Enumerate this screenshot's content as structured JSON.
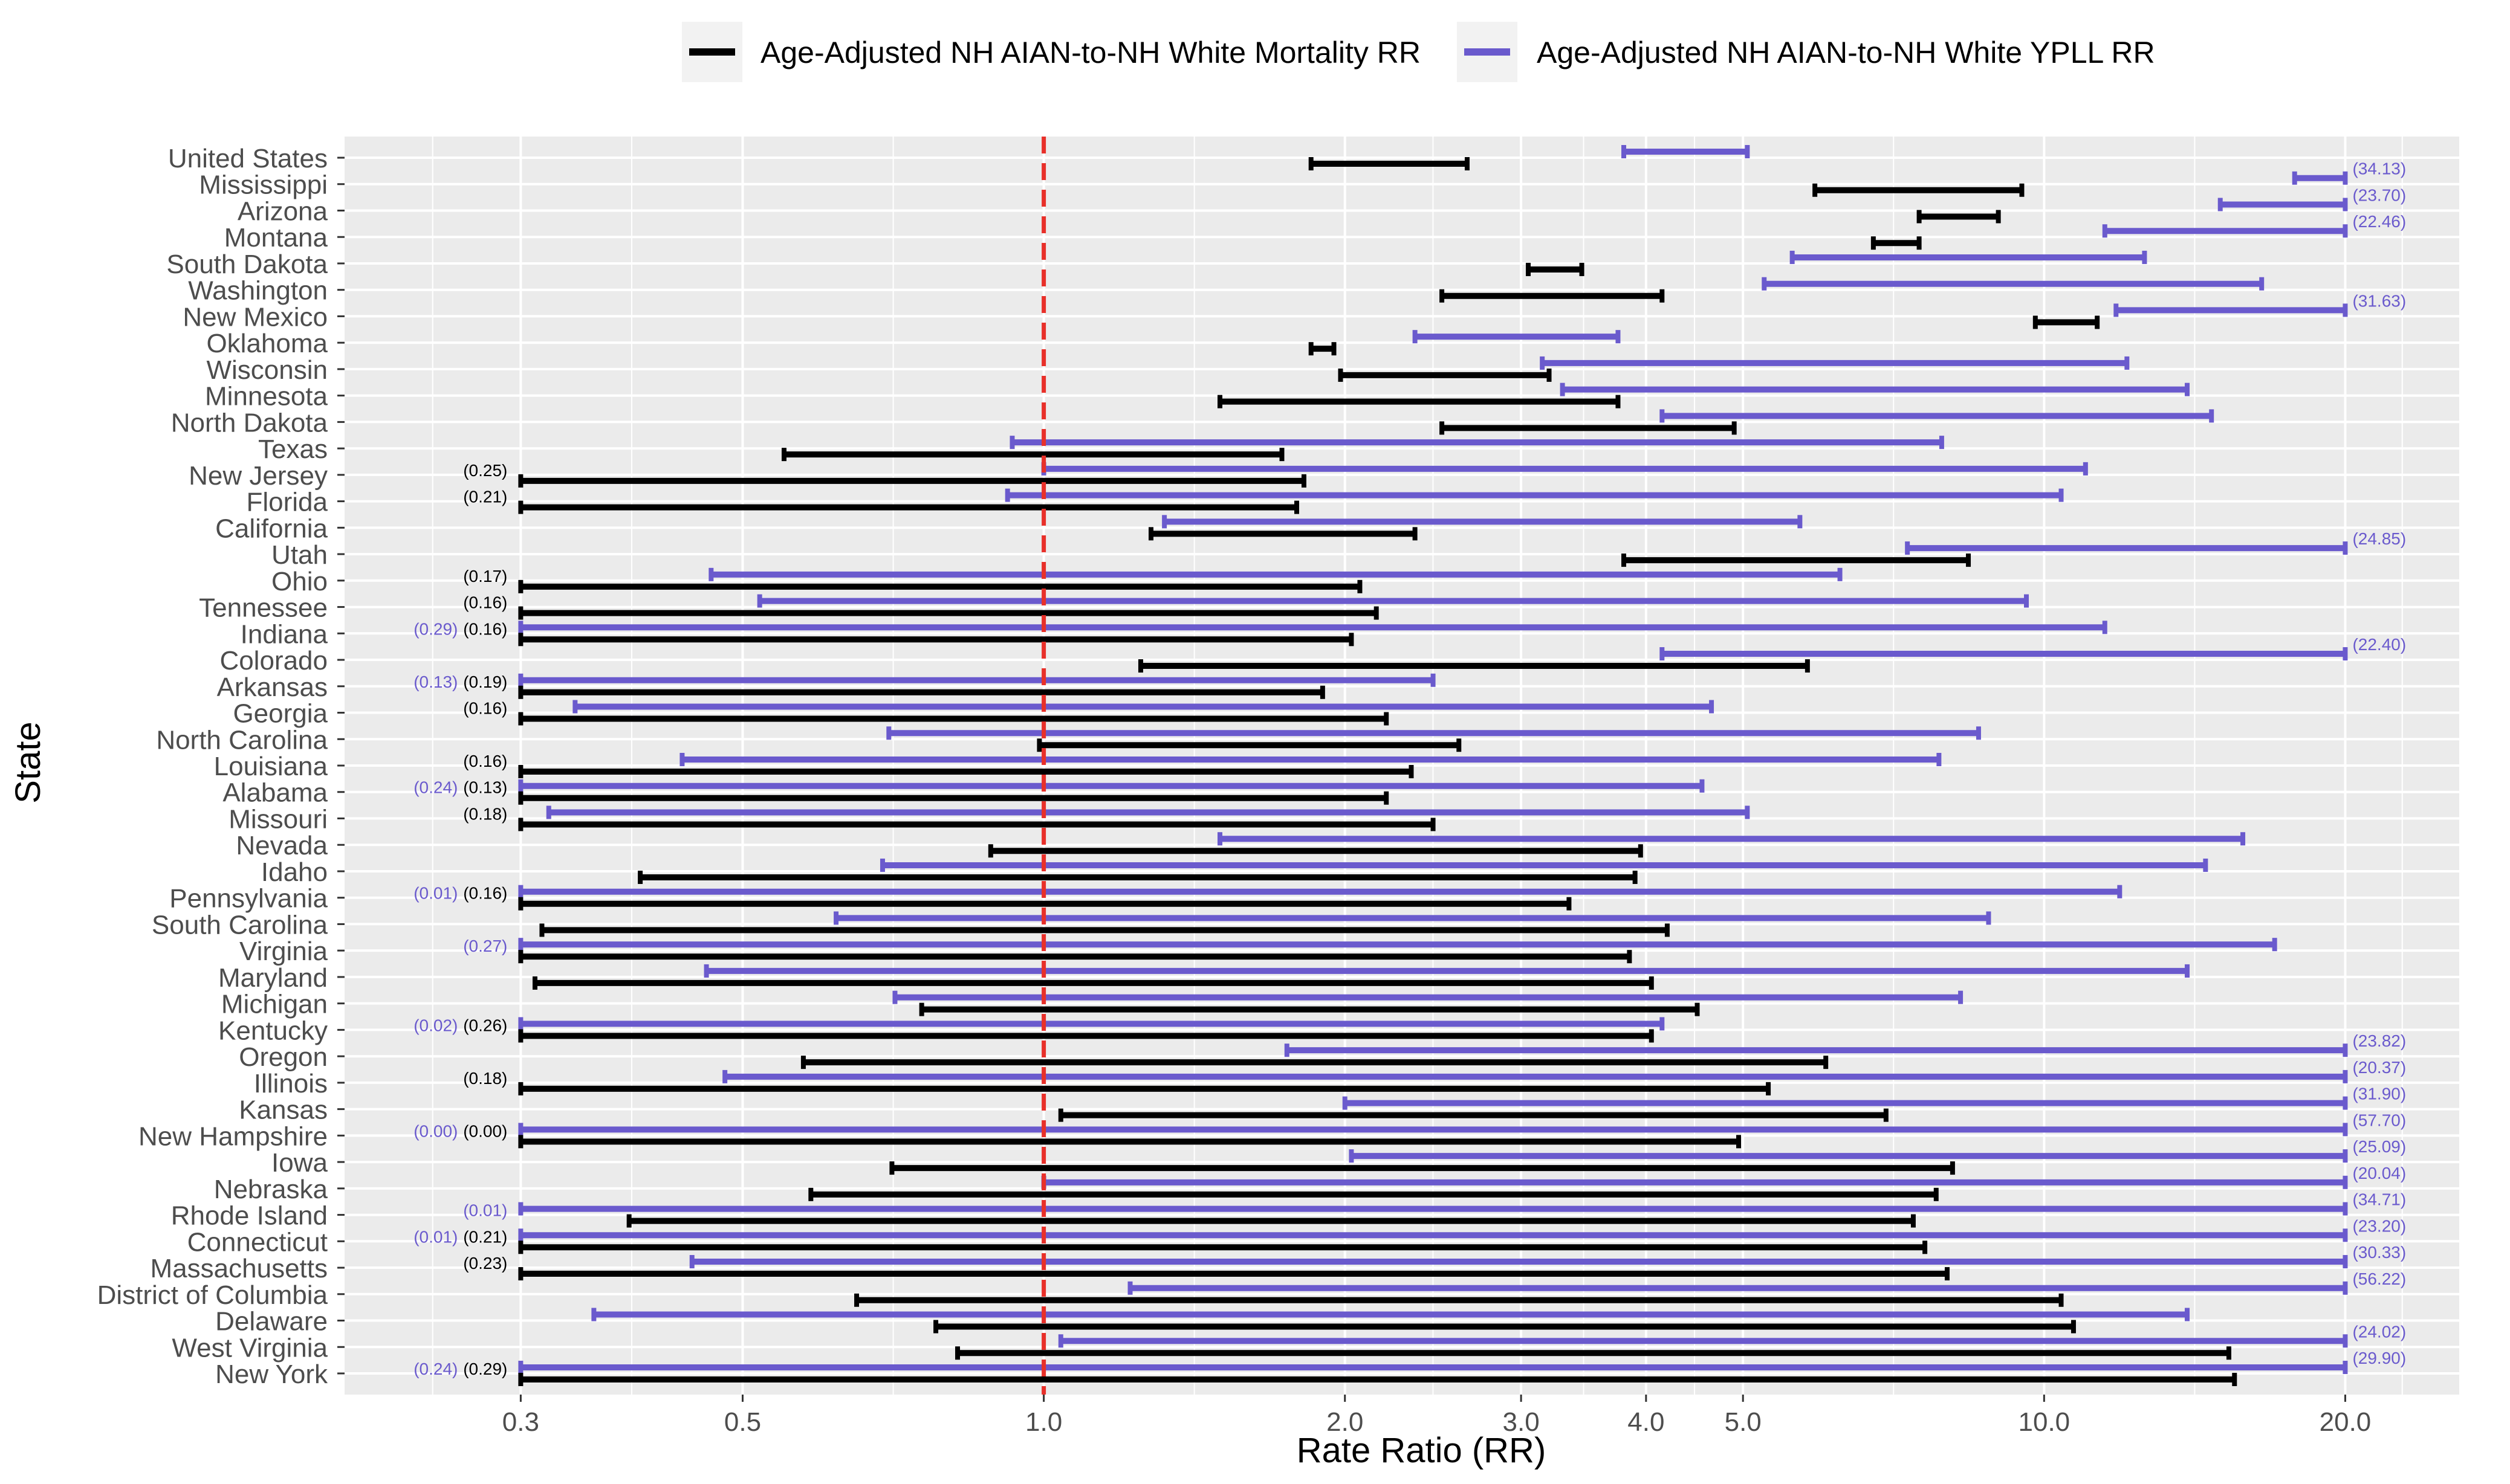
{
  "chart_data": {
    "type": "range-bar",
    "legend": {
      "placement": "top-center",
      "items": [
        {
          "name": "Age-Adjusted NH AIAN-to-NH White Mortality RR",
          "color": "#000000"
        },
        {
          "name": "Age-Adjusted NH AIAN-to-NH White YPLL RR",
          "color": "#6a5acd"
        }
      ]
    },
    "xlabel": "Rate Ratio (RR)",
    "ylabel": "State",
    "xscale": "log",
    "xlim": [
      0.2,
      26
    ],
    "xticks": [
      0.3,
      0.5,
      1.0,
      2.0,
      3.0,
      4.0,
      5.0,
      10.0,
      20.0
    ],
    "xtick_labels": [
      "0.3",
      "0.5",
      "1.0",
      "2.0",
      "3.0",
      "4.0",
      "5.0",
      "10.0",
      "20.0"
    ],
    "reference_line": 1.0,
    "clip_low": 0.3,
    "clip_high": 20.0,
    "colors": {
      "mortality": "#000000",
      "ypll": "#6a5acd",
      "reference": "#e8302a",
      "panel": "#ebebeb"
    },
    "rows": [
      {
        "state": "United States",
        "mort": [
          1.85,
          2.65
        ],
        "ypll": [
          3.8,
          5.05
        ]
      },
      {
        "state": "Mississippi",
        "mort": [
          5.9,
          9.5
        ],
        "ypll": [
          17.8,
          20.0
        ],
        "ypll_hi_label": "(34.13)"
      },
      {
        "state": "Arizona",
        "mort": [
          7.5,
          9.0
        ],
        "ypll": [
          15.0,
          20.0
        ],
        "ypll_hi_label": "(23.70)"
      },
      {
        "state": "Montana",
        "mort": [
          6.75,
          7.5
        ],
        "ypll": [
          11.5,
          20.0
        ],
        "ypll_hi_label": "(22.46)"
      },
      {
        "state": "South Dakota",
        "mort": [
          3.05,
          3.45
        ],
        "ypll": [
          5.6,
          12.6
        ]
      },
      {
        "state": "Washington",
        "mort": [
          2.5,
          4.15
        ],
        "ypll": [
          5.25,
          16.5
        ]
      },
      {
        "state": "New Mexico",
        "mort": [
          9.8,
          11.3
        ],
        "ypll": [
          11.8,
          20.0
        ],
        "ypll_hi_label": "(31.63)"
      },
      {
        "state": "Oklahoma",
        "mort": [
          1.85,
          1.95
        ],
        "ypll": [
          2.35,
          3.75
        ]
      },
      {
        "state": "Wisconsin",
        "mort": [
          1.98,
          3.2
        ],
        "ypll": [
          3.15,
          12.1
        ]
      },
      {
        "state": "Minnesota",
        "mort": [
          1.5,
          3.75
        ],
        "ypll": [
          3.3,
          13.9
        ]
      },
      {
        "state": "North Dakota",
        "mort": [
          2.5,
          4.9
        ],
        "ypll": [
          4.15,
          14.7
        ]
      },
      {
        "state": "Texas",
        "mort": [
          0.55,
          1.73
        ],
        "ypll": [
          0.93,
          7.9
        ]
      },
      {
        "state": "New Jersey",
        "mort": [
          0.3,
          1.82
        ],
        "ypll": [
          1.0,
          11.0
        ],
        "mort_lo_label": "(0.25)"
      },
      {
        "state": "Florida",
        "mort": [
          0.3,
          1.79
        ],
        "ypll": [
          0.92,
          10.4
        ],
        "mort_lo_label": "(0.21)"
      },
      {
        "state": "California",
        "mort": [
          1.28,
          2.35
        ],
        "ypll": [
          1.32,
          5.7
        ]
      },
      {
        "state": "Utah",
        "mort": [
          3.8,
          8.4
        ],
        "ypll": [
          7.3,
          20.0
        ],
        "ypll_hi_label": "(24.85)"
      },
      {
        "state": "Ohio",
        "mort": [
          0.3,
          2.07
        ],
        "ypll": [
          0.465,
          6.25
        ],
        "mort_lo_label": "(0.17)"
      },
      {
        "state": "Tennessee",
        "mort": [
          0.3,
          2.15
        ],
        "ypll": [
          0.52,
          9.6
        ],
        "mort_lo_label": "(0.16)"
      },
      {
        "state": "Indiana",
        "mort": [
          0.3,
          2.03
        ],
        "ypll": [
          0.3,
          11.5
        ],
        "mort_lo_label": "(0.16)",
        "ypll_lo_label": "(0.29)"
      },
      {
        "state": "Colorado",
        "mort": [
          1.25,
          5.8
        ],
        "ypll": [
          4.15,
          20.0
        ],
        "ypll_hi_label": "(22.40)"
      },
      {
        "state": "Arkansas",
        "mort": [
          0.3,
          1.9
        ],
        "ypll": [
          0.3,
          2.45
        ],
        "mort_lo_label": "(0.19)",
        "ypll_lo_label": "(0.13)"
      },
      {
        "state": "Georgia",
        "mort": [
          0.3,
          2.2
        ],
        "ypll": [
          0.34,
          4.65
        ],
        "mort_lo_label": "(0.16)"
      },
      {
        "state": "North Carolina",
        "mort": [
          0.99,
          2.6
        ],
        "ypll": [
          0.7,
          8.6
        ]
      },
      {
        "state": "Louisiana",
        "mort": [
          0.3,
          2.33
        ],
        "ypll": [
          0.435,
          7.85
        ],
        "mort_lo_label": "(0.16)"
      },
      {
        "state": "Alabama",
        "mort": [
          0.3,
          2.2
        ],
        "ypll": [
          0.3,
          4.55
        ],
        "mort_lo_label": "(0.13)",
        "ypll_lo_label": "(0.24)"
      },
      {
        "state": "Missouri",
        "mort": [
          0.3,
          2.45
        ],
        "ypll": [
          0.32,
          5.05
        ],
        "mort_lo_label": "(0.18)"
      },
      {
        "state": "Nevada",
        "mort": [
          0.885,
          3.95
        ],
        "ypll": [
          1.5,
          15.8
        ]
      },
      {
        "state": "Idaho",
        "mort": [
          0.395,
          3.9
        ],
        "ypll": [
          0.69,
          14.5
        ]
      },
      {
        "state": "Pennsylvania",
        "mort": [
          0.3,
          3.35
        ],
        "ypll": [
          0.3,
          11.9
        ],
        "mort_lo_label": "(0.16)",
        "ypll_lo_label": "(0.01)"
      },
      {
        "state": "South Carolina",
        "mort": [
          0.315,
          4.2
        ],
        "ypll": [
          0.62,
          8.8
        ]
      },
      {
        "state": "Virginia",
        "mort": [
          0.3,
          3.85
        ],
        "ypll": [
          0.3,
          17.0
        ],
        "ypll_lo_label": "(0.27)"
      },
      {
        "state": "Maryland",
        "mort": [
          0.31,
          4.05
        ],
        "ypll": [
          0.46,
          13.9
        ]
      },
      {
        "state": "Michigan",
        "mort": [
          0.755,
          4.5
        ],
        "ypll": [
          0.71,
          8.25
        ]
      },
      {
        "state": "Kentucky",
        "mort": [
          0.3,
          4.05
        ],
        "ypll": [
          0.3,
          4.15
        ],
        "mort_lo_label": "(0.26)",
        "ypll_lo_label": "(0.02)"
      },
      {
        "state": "Oregon",
        "mort": [
          0.575,
          6.05
        ],
        "ypll": [
          1.75,
          20.0
        ],
        "ypll_hi_label": "(23.82)"
      },
      {
        "state": "Illinois",
        "mort": [
          0.3,
          5.3
        ],
        "ypll": [
          0.48,
          20.0
        ],
        "mort_lo_label": "(0.18)",
        "ypll_hi_label": "(20.37)"
      },
      {
        "state": "Kansas",
        "mort": [
          1.04,
          6.95
        ],
        "ypll": [
          2.0,
          20.0
        ],
        "ypll_hi_label": "(31.90)"
      },
      {
        "state": "New Hampshire",
        "mort": [
          0.3,
          4.95
        ],
        "ypll": [
          0.3,
          20.0
        ],
        "mort_lo_label": "(0.00)",
        "ypll_lo_label": "(0.00)",
        "ypll_hi_label": "(57.70)"
      },
      {
        "state": "Iowa",
        "mort": [
          0.705,
          8.1
        ],
        "ypll": [
          2.03,
          20.0
        ],
        "ypll_hi_label": "(25.09)"
      },
      {
        "state": "Nebraska",
        "mort": [
          0.585,
          7.8
        ],
        "ypll": [
          1.0,
          20.0
        ],
        "ypll_hi_label": "(20.04)"
      },
      {
        "state": "Rhode Island",
        "mort": [
          0.385,
          7.4
        ],
        "ypll": [
          0.3,
          20.0
        ],
        "ypll_lo_label": "(0.01)",
        "ypll_hi_label": "(34.71)"
      },
      {
        "state": "Connecticut",
        "mort": [
          0.3,
          7.6
        ],
        "ypll": [
          0.3,
          20.0
        ],
        "mort_lo_label": "(0.21)",
        "ypll_lo_label": "(0.01)",
        "ypll_hi_label": "(23.20)"
      },
      {
        "state": "Massachusetts",
        "mort": [
          0.3,
          8.0
        ],
        "ypll": [
          0.445,
          20.0
        ],
        "mort_lo_label": "(0.23)",
        "ypll_hi_label": "(30.33)"
      },
      {
        "state": "District of Columbia",
        "mort": [
          0.65,
          10.4
        ],
        "ypll": [
          1.22,
          20.0
        ],
        "ypll_hi_label": "(56.22)"
      },
      {
        "state": "Delaware",
        "mort": [
          0.78,
          10.7
        ],
        "ypll": [
          0.355,
          13.9
        ]
      },
      {
        "state": "West Virginia",
        "mort": [
          0.82,
          15.3
        ],
        "ypll": [
          1.04,
          20.0
        ],
        "ypll_hi_label": "(24.02)"
      },
      {
        "state": "New York",
        "mort": [
          0.3,
          15.5
        ],
        "ypll": [
          0.3,
          20.0
        ],
        "mort_lo_label": "(0.29)",
        "ypll_lo_label": "(0.24)",
        "ypll_hi_label": "(29.90)"
      }
    ]
  }
}
